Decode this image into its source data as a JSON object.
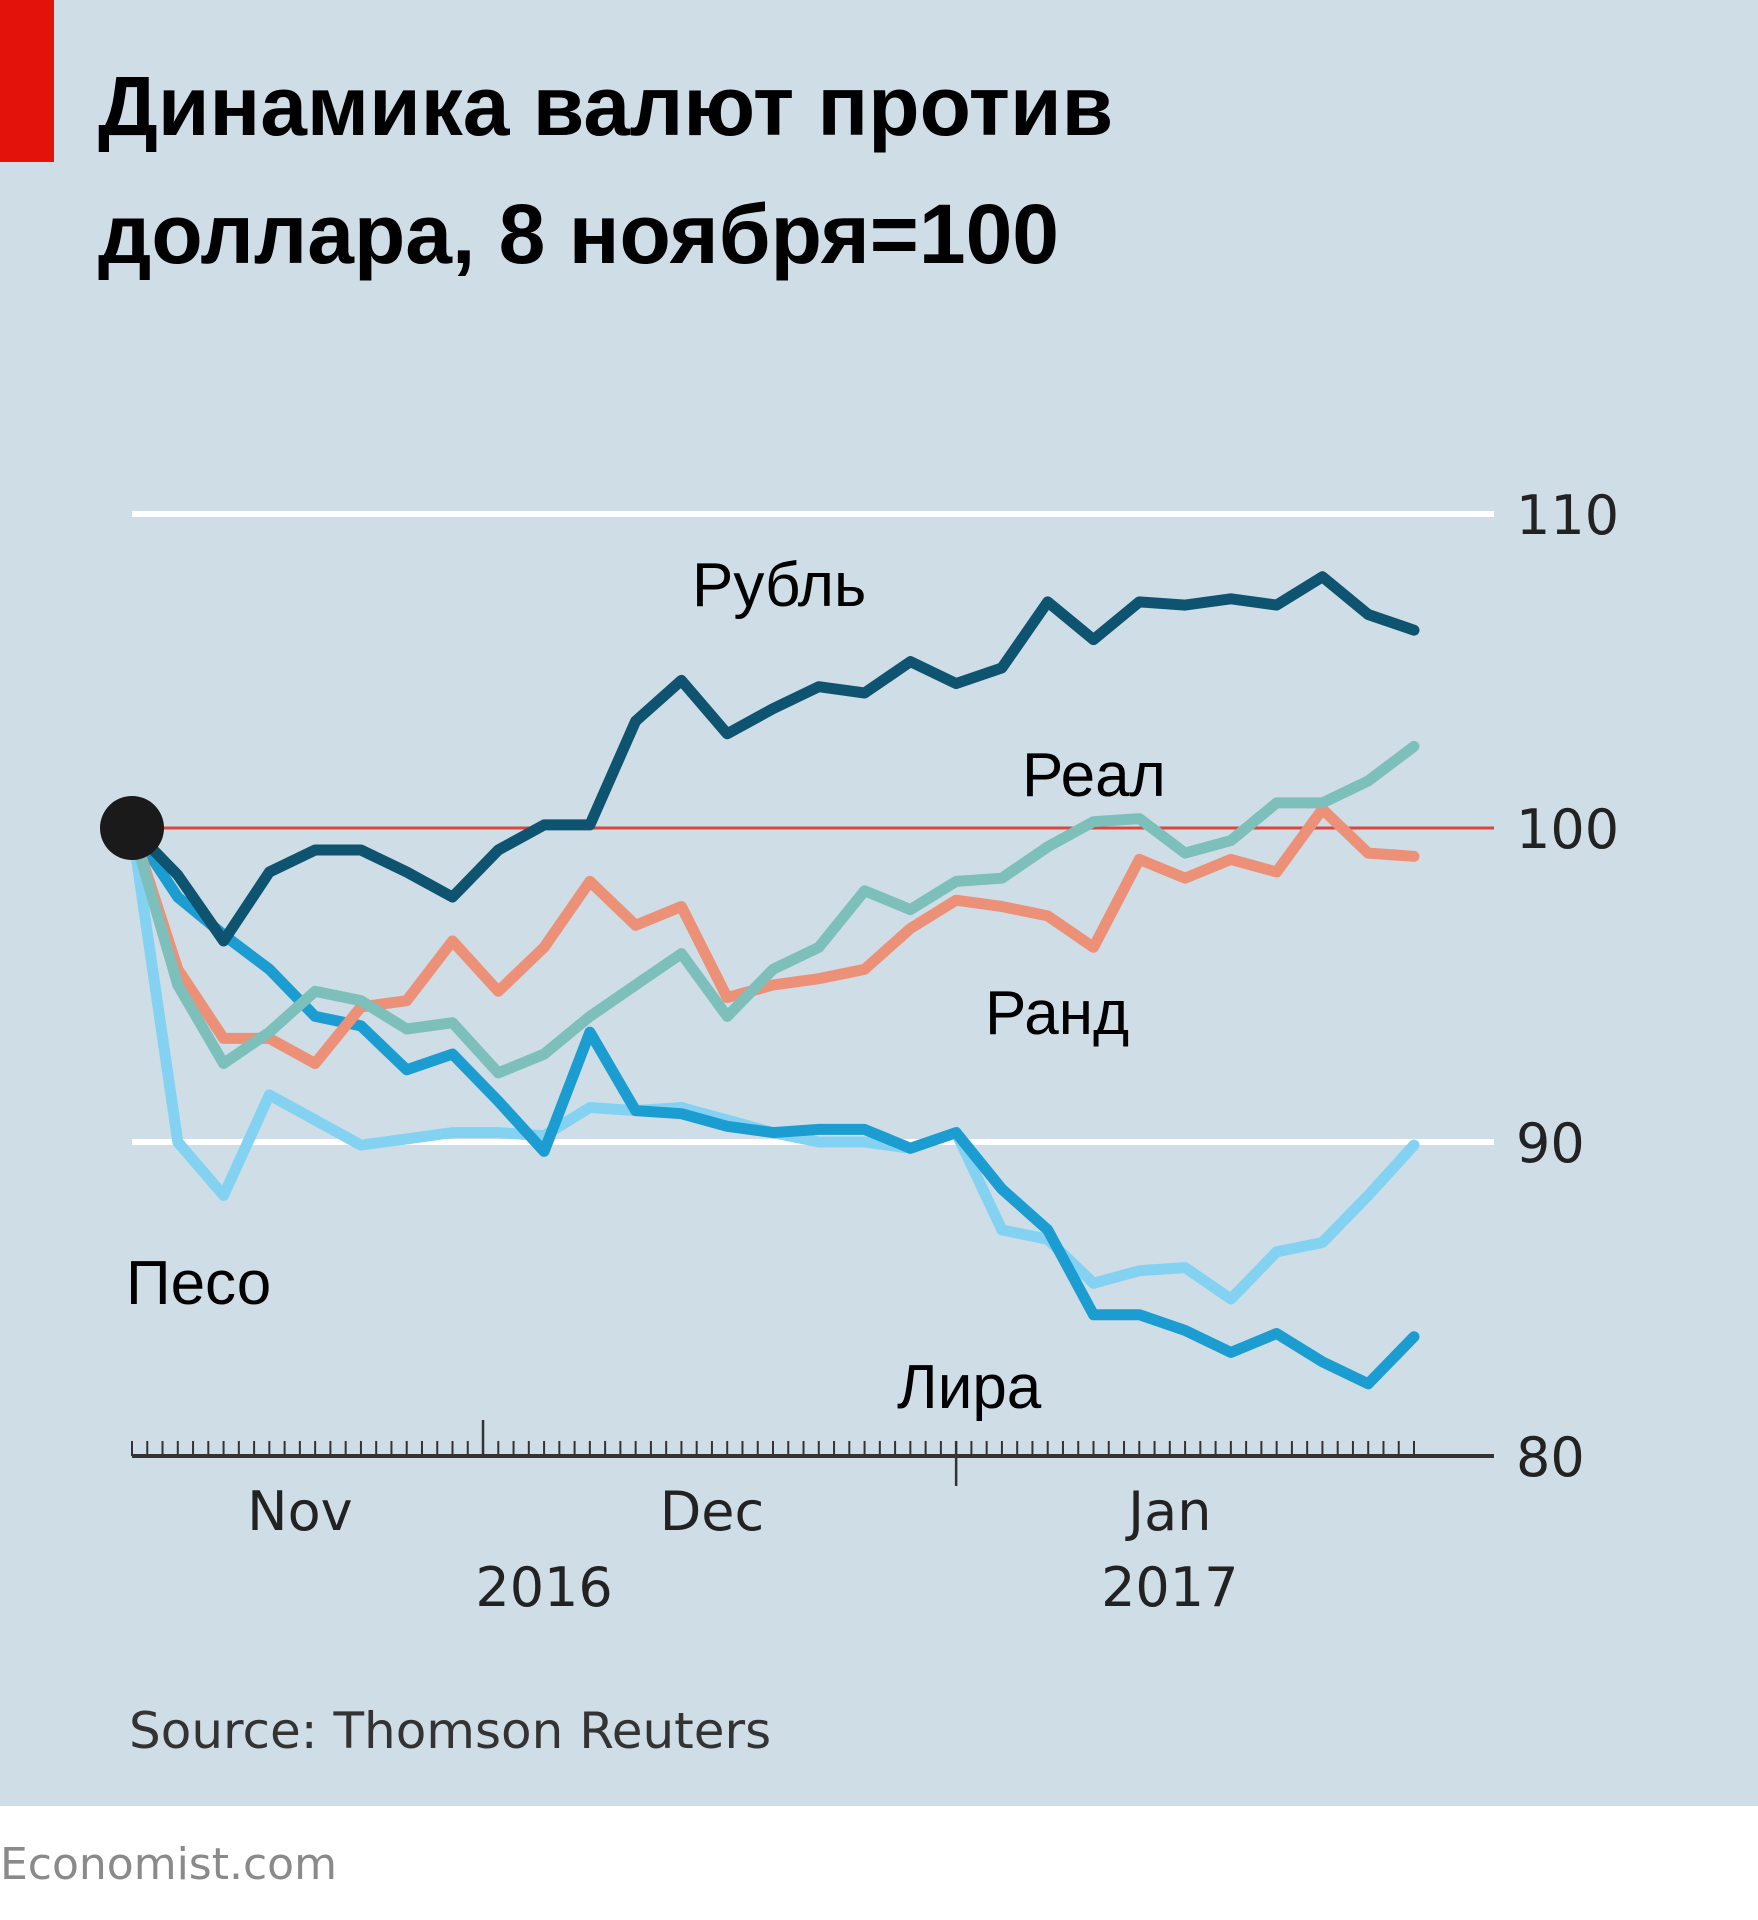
{
  "chart_data": {
    "type": "line",
    "title_line1": "Динамика валют против",
    "title_line2": "доллара, 8 ноября=100",
    "xlabel": "",
    "ylabel": "",
    "x_unit": "days since 8 Nov 2016",
    "x": [
      0,
      3,
      6,
      9,
      12,
      15,
      18,
      21,
      24,
      27,
      30,
      33,
      36,
      39,
      42,
      45,
      48,
      51,
      54,
      57,
      60,
      63,
      66,
      69,
      72,
      75,
      78,
      81,
      84
    ],
    "ylim": [
      80,
      110
    ],
    "yticks": [
      "110",
      "100",
      "90",
      "80"
    ],
    "ytick_values": [
      110,
      100,
      90,
      80
    ],
    "reference_line": 100,
    "month_labels": [
      {
        "label": "Nov",
        "day": 11
      },
      {
        "label": "Dec",
        "day": 38
      },
      {
        "label": "Jan",
        "day": 68
      }
    ],
    "year_labels": [
      {
        "label": "2016",
        "day": 27
      },
      {
        "label": "2017",
        "day": 68
      }
    ],
    "major_ticks_days": [
      23,
      54
    ],
    "grid": true,
    "series": [
      {
        "name": "Рубль",
        "color": "#0e5470",
        "values": [
          100,
          98.5,
          96.4,
          98.6,
          99.3,
          99.3,
          98.6,
          97.8,
          99.3,
          100.1,
          100.1,
          103.4,
          104.7,
          103.0,
          103.8,
          104.5,
          104.3,
          105.3,
          104.6,
          105.1,
          107.2,
          106.0,
          107.2,
          107.1,
          107.3,
          107.1,
          108.0,
          106.8,
          106.3
        ]
      },
      {
        "name": "Реал",
        "color": "#7dbfba",
        "values": [
          100,
          95.0,
          92.5,
          93.5,
          94.8,
          94.5,
          93.6,
          93.8,
          92.2,
          92.8,
          94.0,
          95.0,
          96.0,
          94.0,
          95.5,
          96.2,
          98.0,
          97.4,
          98.3,
          98.4,
          99.4,
          100.2,
          100.3,
          99.2,
          99.6,
          100.8,
          100.8,
          101.5,
          102.6
        ]
      },
      {
        "name": "Ранд",
        "color": "#ec9178",
        "values": [
          100,
          95.5,
          93.3,
          93.3,
          92.5,
          94.3,
          94.5,
          96.4,
          94.8,
          96.2,
          98.3,
          96.9,
          97.5,
          94.6,
          95.0,
          95.2,
          95.5,
          96.8,
          97.7,
          97.5,
          97.2,
          96.2,
          99.0,
          98.4,
          99.0,
          98.6,
          100.6,
          99.2,
          99.1
        ]
      },
      {
        "name": "Лира",
        "color": "#1c9dd1",
        "values": [
          100,
          97.8,
          96.6,
          95.5,
          94.0,
          93.7,
          92.3,
          92.8,
          91.3,
          89.7,
          93.5,
          91.0,
          90.9,
          90.5,
          90.3,
          90.4,
          90.4,
          89.8,
          90.3,
          88.5,
          87.2,
          84.5,
          84.5,
          84.0,
          83.3,
          83.9,
          83.0,
          82.3,
          83.8
        ]
      },
      {
        "name": "Песо",
        "color": "#84d2f2",
        "values": [
          100,
          90.0,
          88.3,
          91.5,
          90.7,
          89.9,
          90.1,
          90.3,
          90.3,
          90.2,
          91.1,
          91.0,
          91.1,
          90.7,
          90.3,
          90.0,
          90.0,
          89.8,
          90.3,
          87.2,
          86.9,
          85.5,
          85.9,
          86.0,
          85.0,
          86.5,
          86.8,
          88.3,
          89.9
        ]
      }
    ],
    "reference_color": "#d9473f",
    "source": "Source: Thomson Reuters"
  },
  "footer": {
    "brand": "Economist.com"
  }
}
